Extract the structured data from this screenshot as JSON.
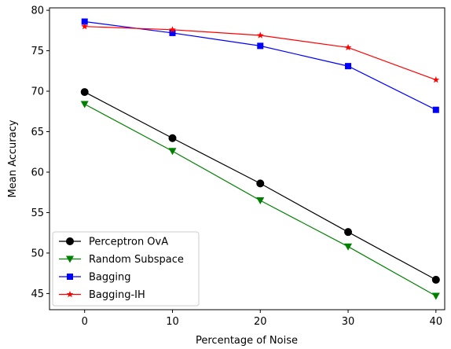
{
  "chart_data": {
    "type": "line",
    "xlabel": "Percentage of Noise",
    "ylabel": "Mean Accuracy",
    "xlim": [
      -4,
      41
    ],
    "ylim": [
      43,
      80.3
    ],
    "xticks": [
      0,
      10,
      20,
      30,
      40
    ],
    "yticks": [
      45,
      50,
      55,
      60,
      65,
      70,
      75,
      80
    ],
    "grid": false,
    "legend_position": "lower-left",
    "x": [
      0,
      10,
      20,
      30,
      40
    ],
    "series": [
      {
        "name": "Perceptron OvA",
        "values": [
          69.9,
          64.2,
          58.6,
          52.6,
          46.7
        ],
        "color": "#000000",
        "marker": "circle"
      },
      {
        "name": "Random Subspace",
        "values": [
          68.4,
          62.6,
          56.5,
          50.8,
          44.7
        ],
        "color": "#008000",
        "marker": "triangle-down"
      },
      {
        "name": "Bagging",
        "values": [
          78.6,
          77.2,
          75.6,
          73.1,
          67.7
        ],
        "color": "#0000ff",
        "marker": "square"
      },
      {
        "name": "Bagging-IH",
        "values": [
          78.0,
          77.6,
          76.9,
          75.4,
          71.4
        ],
        "color": "#ff0000",
        "marker": "star"
      }
    ]
  }
}
